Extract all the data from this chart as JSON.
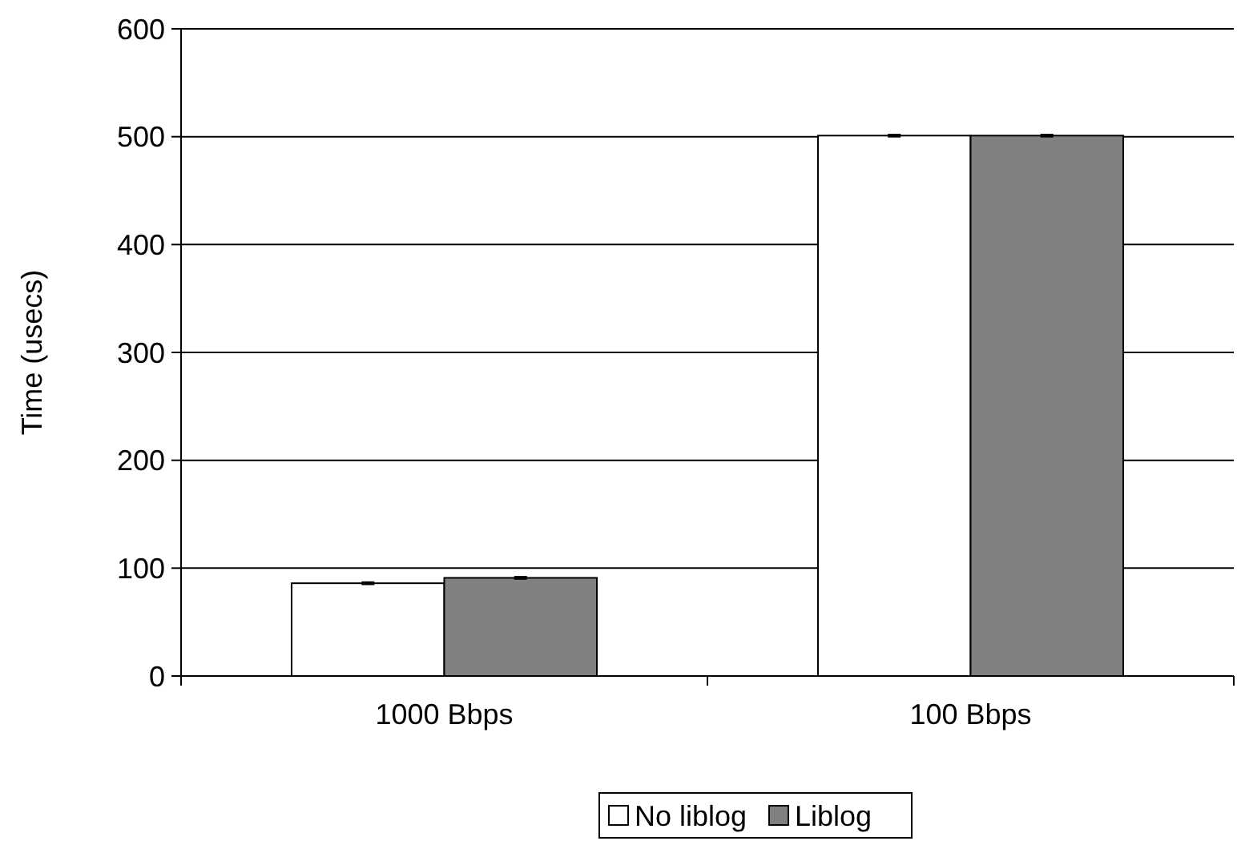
{
  "chart_data": {
    "type": "bar",
    "ylabel": "Time (usecs)",
    "categories": [
      "1000 Bbps",
      "100 Bbps"
    ],
    "series": [
      {
        "name": "No liblog",
        "color": "#ffffff",
        "values": [
          86,
          501
        ],
        "errors": [
          1,
          1
        ]
      },
      {
        "name": "Liblog",
        "color": "#808080",
        "values": [
          91,
          501
        ],
        "errors": [
          1,
          1
        ]
      }
    ],
    "ylim": [
      0,
      600
    ],
    "yticks": [
      0,
      100,
      200,
      300,
      400,
      500,
      600
    ],
    "grid": "y",
    "legend": "bottom"
  }
}
